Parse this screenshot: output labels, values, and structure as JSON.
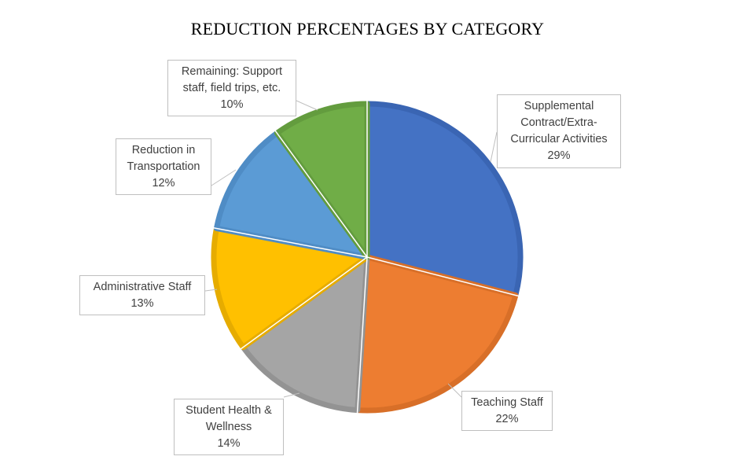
{
  "chart_data": {
    "type": "pie",
    "title": "REDUCTION PERCENTAGES BY CATEGORY",
    "categories": [
      "Supplemental Contract/Extra-Curricular Activities",
      "Teaching Staff",
      "Student Health & Wellness",
      "Administrative Staff",
      "Reduction in Transportation",
      "Remaining:  Support staff, field trips, etc."
    ],
    "values": [
      29,
      22,
      14,
      13,
      12,
      10
    ],
    "value_labels": [
      "29%",
      "22%",
      "14%",
      "13%",
      "12%",
      "10%"
    ],
    "colors": [
      "#4472C4",
      "#ED7D31",
      "#A5A5A5",
      "#FFC000",
      "#5B9BD5",
      "#70AD47"
    ],
    "edge_colors": [
      "#3A65B3",
      "#D86F28",
      "#939393",
      "#E6AC00",
      "#4F8CC5",
      "#639C3E"
    ],
    "legend": "none",
    "data_labels": "callouts"
  }
}
